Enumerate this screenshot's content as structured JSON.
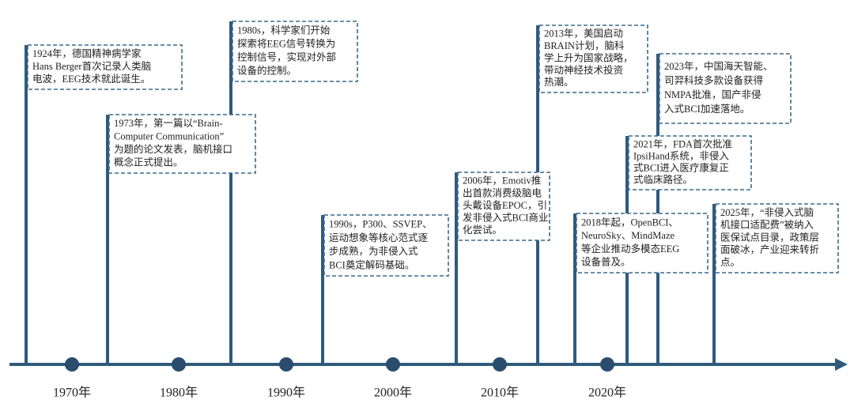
{
  "timeline": {
    "decades": [
      "1970年",
      "1980年",
      "1990年",
      "2000年",
      "2010年",
      "2020年"
    ],
    "events": [
      {
        "lines": [
          "1924年，德国精神病学家",
          "Hans Berger首次记录人类脑",
          "电波，EEG技术就此诞生。"
        ]
      },
      {
        "lines": [
          "1973年，第一篇以“Brain-",
          "Computer Communication”",
          "为题的论文发表，脑机接口",
          "概念正式提出。"
        ]
      },
      {
        "lines": [
          "1980s，科学家们开始",
          "探索将EEG信号转换为",
          "控制信号，实现对外部",
          "设备的控制。"
        ]
      },
      {
        "lines": [
          "1990s，P300、SSVEP、",
          "运动想象等核心范式逐",
          "步成熟，为非侵入式",
          "BCI奠定解码基础。"
        ]
      },
      {
        "lines": [
          "2006年，Emotiv推",
          "出首款消费级脑电",
          "头戴设备EPOC，引",
          "发非侵入式BCI商业",
          "化尝试。"
        ]
      },
      {
        "lines": [
          "2013年，美国启动",
          "BRAIN计划，脑科",
          "学上升为国家战略，",
          "带动神经技术投资",
          "热潮。"
        ]
      },
      {
        "lines": [
          "2018年起，OpenBCI、",
          "NeuroSky、MindMaze",
          "等企业推动多模态EEG",
          "设备普及。"
        ]
      },
      {
        "lines": [
          "2021年，FDA首次批准",
          "IpsiHand系统，非侵入",
          "式BCI进入医疗康复正",
          "式临床路径。"
        ]
      },
      {
        "lines": [
          "2023年，中国海天智能、",
          "司羿科技多款设备获得",
          "NMPA批准，国产非侵",
          "入式BCI加速落地。"
        ]
      },
      {
        "lines": [
          "2025年，“非侵入式脑",
          "机接口适配费”被纳入",
          "医保试点目录，政策层",
          "面破冰，产业迎来转折",
          "点。"
        ]
      }
    ]
  }
}
